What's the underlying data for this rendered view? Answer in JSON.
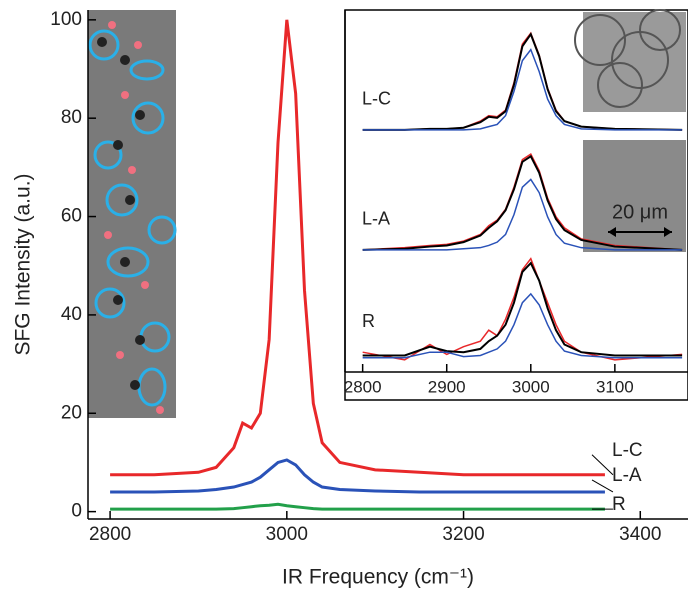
{
  "chart_data": [
    {
      "type": "line",
      "x_label": "IR Frequency (cm⁻¹)",
      "y_label": "SFG Intensity (a.u.)",
      "x": [
        2800,
        2850,
        2900,
        2920,
        2940,
        2950,
        2960,
        2970,
        2980,
        2990,
        3000,
        3010,
        3020,
        3030,
        3040,
        3060,
        3100,
        3150,
        3200,
        3250,
        3300,
        3360
      ],
      "series": [
        {
          "name": "L-C",
          "color": "#e8282a",
          "values": [
            7.5,
            7.5,
            8,
            9,
            13,
            18,
            17,
            20,
            35,
            75,
            100,
            85,
            45,
            22,
            14,
            10,
            8.5,
            8,
            7.5,
            7.5,
            7.5,
            7.5
          ]
        },
        {
          "name": "L-A",
          "color": "#2a52b8",
          "values": [
            4,
            4,
            4.2,
            4.5,
            5,
            5.5,
            6,
            7,
            8.5,
            10,
            10.5,
            9.5,
            7.5,
            6,
            5,
            4.5,
            4.2,
            4,
            4,
            4,
            4,
            4
          ]
        },
        {
          "name": "R",
          "color": "#22a04a",
          "values": [
            0.5,
            0.5,
            0.5,
            0.5,
            0.6,
            0.8,
            1,
            1.2,
            1.3,
            1.5,
            1.2,
            1,
            0.8,
            0.6,
            0.5,
            0.5,
            0.5,
            0.5,
            0.5,
            0.5,
            0.5,
            0.5
          ]
        }
      ],
      "xlim": [
        2775,
        3454
      ],
      "ylim": [
        -1.5,
        102
      ],
      "xticks": [
        2800,
        3000,
        3200,
        3400
      ],
      "yticks": [
        0,
        20,
        40,
        60,
        80,
        100
      ]
    },
    {
      "type": "line",
      "x": [
        2800,
        2850,
        2880,
        2900,
        2920,
        2940,
        2950,
        2960,
        2970,
        2980,
        2990,
        3000,
        3010,
        3020,
        3030,
        3040,
        3060,
        3100,
        3180
      ],
      "series": [
        {
          "name": "L-C",
          "color": "#e8282a",
          "values": [
            2.07,
            2.07,
            2.08,
            2.08,
            2.09,
            2.15,
            2.2,
            2.19,
            2.25,
            2.5,
            2.85,
            2.95,
            2.75,
            2.45,
            2.25,
            2.15,
            2.1,
            2.08,
            2.07
          ]
        },
        {
          "color": "#000000",
          "values": [
            2.07,
            2.07,
            2.08,
            2.08,
            2.09,
            2.14,
            2.19,
            2.18,
            2.24,
            2.48,
            2.83,
            2.94,
            2.74,
            2.44,
            2.24,
            2.15,
            2.1,
            2.08,
            2.07
          ]
        },
        {
          "color": "#2a52b8",
          "values": [
            2.07,
            2.07,
            2.07,
            2.07,
            2.07,
            2.08,
            2.1,
            2.12,
            2.2,
            2.42,
            2.7,
            2.8,
            2.6,
            2.35,
            2.2,
            2.12,
            2.08,
            2.07,
            2.07
          ]
        },
        {
          "name": "L-A",
          "color": "#e8282a",
          "values": [
            0.98,
            1.0,
            1.02,
            1.03,
            1.06,
            1.12,
            1.2,
            1.25,
            1.35,
            1.55,
            1.8,
            1.85,
            1.7,
            1.45,
            1.28,
            1.18,
            1.08,
            1.02,
            0.98
          ]
        },
        {
          "color": "#000000",
          "values": [
            0.98,
            0.99,
            1.01,
            1.02,
            1.05,
            1.11,
            1.18,
            1.24,
            1.34,
            1.53,
            1.78,
            1.83,
            1.68,
            1.43,
            1.26,
            1.16,
            1.07,
            1.01,
            0.98
          ]
        },
        {
          "color": "#2a52b8",
          "values": [
            0.98,
            0.98,
            0.98,
            0.98,
            0.99,
            1.0,
            1.02,
            1.05,
            1.12,
            1.3,
            1.55,
            1.62,
            1.5,
            1.28,
            1.12,
            1.04,
            1.0,
            0.98,
            0.98
          ]
        },
        {
          "name": "R",
          "color": "#e8282a",
          "values": [
            0.05,
            -0.02,
            0.12,
            0.03,
            0.1,
            0.15,
            0.25,
            0.2,
            0.35,
            0.55,
            0.8,
            0.9,
            0.7,
            0.5,
            0.3,
            0.15,
            0.05,
            -0.02,
            0.03
          ]
        },
        {
          "color": "#000000",
          "values": [
            0.02,
            0.02,
            0.1,
            0.06,
            0.05,
            0.08,
            0.15,
            0.2,
            0.3,
            0.5,
            0.78,
            0.86,
            0.7,
            0.45,
            0.25,
            0.12,
            0.05,
            0.02,
            0.02
          ]
        },
        {
          "color": "#2a52b8",
          "values": [
            0,
            0,
            0.05,
            0.05,
            0.01,
            0.02,
            0.05,
            0.08,
            0.15,
            0.3,
            0.5,
            0.58,
            0.48,
            0.3,
            0.15,
            0.06,
            0.02,
            0,
            0
          ]
        }
      ],
      "xlim": [
        2779,
        3187
      ],
      "ylim": [
        -0.13,
        3.16
      ],
      "xticks": [
        2800,
        2900,
        3000,
        3100
      ],
      "scale_bar_label": "20 μm"
    }
  ]
}
